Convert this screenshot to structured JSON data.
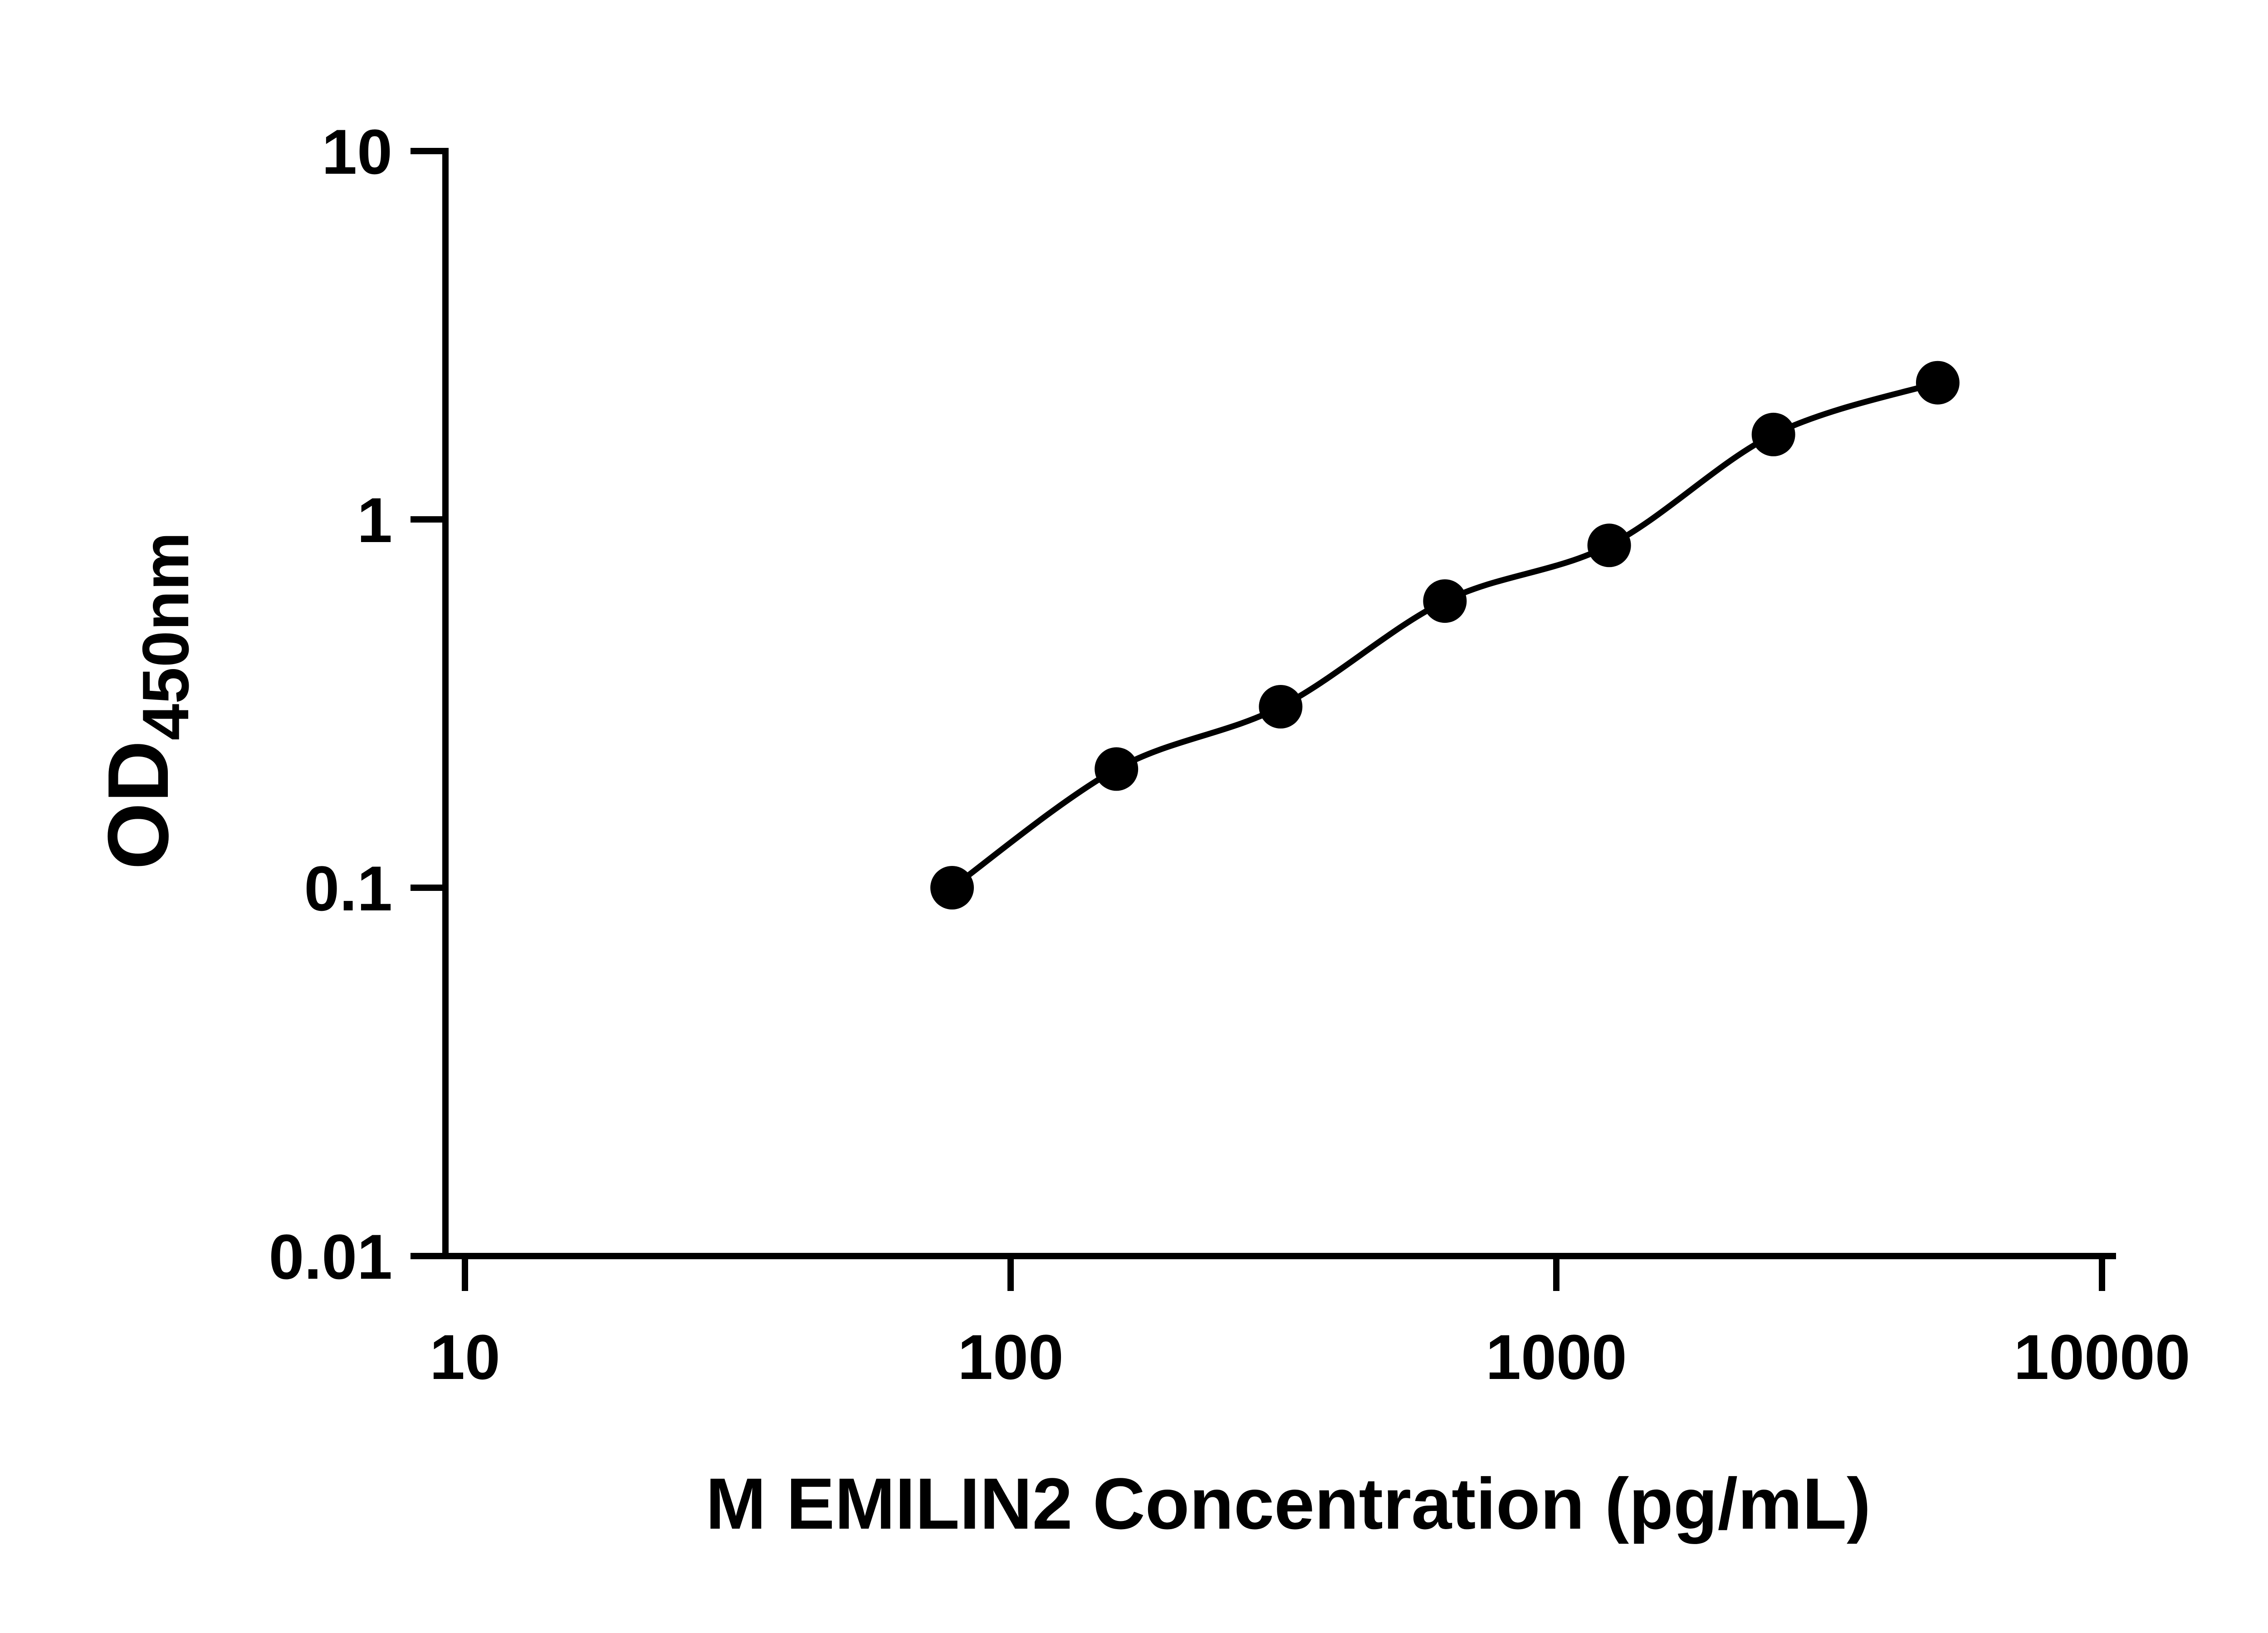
{
  "figure": {
    "background_color": "#ffffff",
    "axis_color": "#000000",
    "marker_color": "#000000",
    "curve_color": "#000000"
  },
  "chart_data": {
    "type": "scatter",
    "title": "",
    "xlabel": "M EMILIN2 Concentration (pg/mL)",
    "ylabel": "OD450nm",
    "ylabel_main": "OD",
    "ylabel_subscript": "450nm",
    "xscale": "log",
    "yscale": "log",
    "xlim": [
      10,
      10000
    ],
    "ylim": [
      0.01,
      10
    ],
    "x_ticks": [
      10,
      100,
      1000,
      10000
    ],
    "x_tick_labels": [
      "10",
      "100",
      "1000",
      "10000"
    ],
    "y_ticks": [
      10,
      1,
      0.1,
      0.01
    ],
    "y_tick_labels": [
      "10",
      "1",
      "0.1",
      "0.01"
    ],
    "grid": false,
    "legend": false,
    "marker": "filled-circle",
    "line": "smooth-fit-curve",
    "x": [
      78.125,
      156.25,
      312.5,
      625,
      1250,
      2500,
      5000
    ],
    "y": [
      0.1,
      0.21,
      0.31,
      0.6,
      0.85,
      1.7,
      2.35
    ]
  }
}
